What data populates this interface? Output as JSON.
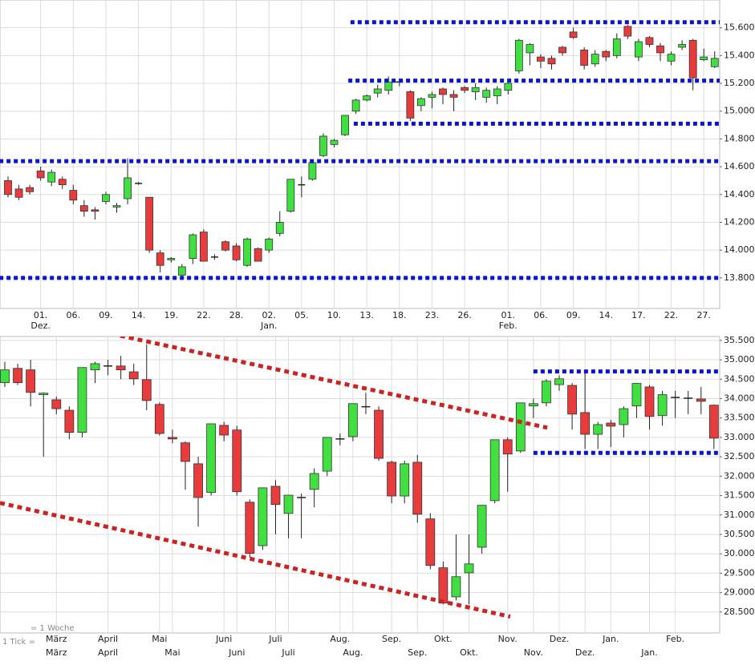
{
  "chart_data": [
    {
      "type": "candlestick",
      "ohlc": [
        [
          14.5,
          14.53,
          14.38,
          14.4
        ],
        [
          14.44,
          14.47,
          14.36,
          14.38
        ],
        [
          14.45,
          14.47,
          14.4,
          14.42
        ],
        [
          14.57,
          14.6,
          14.5,
          14.52
        ],
        [
          14.49,
          14.58,
          14.46,
          14.56
        ],
        [
          14.51,
          14.53,
          14.44,
          14.47
        ],
        [
          14.43,
          14.47,
          14.33,
          14.36
        ],
        [
          14.32,
          14.36,
          14.24,
          14.28
        ],
        [
          14.29,
          14.31,
          14.22,
          14.28
        ],
        [
          14.35,
          14.42,
          14.33,
          14.4
        ],
        [
          14.31,
          14.34,
          14.27,
          14.32
        ],
        [
          14.37,
          14.66,
          14.33,
          14.52
        ],
        [
          14.48,
          14.49,
          14.47,
          14.48
        ],
        [
          14.38,
          14.38,
          13.98,
          14.0
        ],
        [
          13.98,
          14.0,
          13.84,
          13.89
        ],
        [
          13.93,
          13.95,
          13.91,
          13.94
        ],
        [
          13.82,
          13.9,
          13.8,
          13.88
        ],
        [
          13.94,
          14.12,
          13.9,
          14.11
        ],
        [
          14.13,
          14.15,
          13.92,
          13.92
        ],
        [
          13.95,
          13.97,
          13.93,
          13.95
        ],
        [
          14.06,
          14.07,
          13.99,
          14.0
        ],
        [
          14.03,
          14.05,
          13.92,
          13.93
        ],
        [
          13.89,
          14.09,
          13.88,
          14.08
        ],
        [
          14.01,
          14.02,
          13.92,
          13.92
        ],
        [
          14.0,
          14.09,
          13.98,
          14.08
        ],
        [
          14.12,
          14.28,
          14.1,
          14.2
        ],
        [
          14.28,
          14.51,
          14.27,
          14.51
        ],
        [
          14.47,
          14.53,
          14.38,
          14.47
        ],
        [
          14.51,
          14.64,
          14.5,
          14.63
        ],
        [
          14.68,
          14.84,
          14.67,
          14.82
        ],
        [
          14.76,
          14.8,
          14.74,
          14.79
        ],
        [
          14.83,
          14.97,
          14.82,
          14.97
        ],
        [
          15.0,
          15.09,
          14.98,
          15.08
        ],
        [
          15.08,
          15.12,
          15.07,
          15.11
        ],
        [
          15.13,
          15.19,
          15.1,
          15.16
        ],
        [
          15.15,
          15.25,
          15.12,
          15.21
        ],
        [
          15.21,
          15.22,
          15.18,
          15.21
        ],
        [
          15.14,
          15.15,
          14.93,
          14.95
        ],
        [
          15.04,
          15.1,
          15.0,
          15.09
        ],
        [
          15.1,
          15.14,
          15.02,
          15.12
        ],
        [
          15.16,
          15.17,
          15.05,
          15.12
        ],
        [
          15.12,
          15.15,
          15.0,
          15.1
        ],
        [
          15.17,
          15.18,
          15.13,
          15.15
        ],
        [
          15.14,
          15.2,
          15.08,
          15.17
        ],
        [
          15.1,
          15.17,
          15.06,
          15.15
        ],
        [
          15.11,
          15.18,
          15.05,
          15.16
        ],
        [
          15.15,
          15.22,
          15.12,
          15.2
        ],
        [
          15.29,
          15.52,
          15.27,
          15.51
        ],
        [
          15.42,
          15.49,
          15.33,
          15.48
        ],
        [
          15.39,
          15.41,
          15.31,
          15.36
        ],
        [
          15.38,
          15.4,
          15.3,
          15.34
        ],
        [
          15.46,
          15.47,
          15.4,
          15.42
        ],
        [
          15.57,
          15.6,
          15.52,
          15.53
        ],
        [
          15.44,
          15.46,
          15.3,
          15.33
        ],
        [
          15.34,
          15.44,
          15.32,
          15.41
        ],
        [
          15.43,
          15.44,
          15.36,
          15.39
        ],
        [
          15.4,
          15.56,
          15.38,
          15.52
        ],
        [
          15.61,
          15.62,
          15.52,
          15.54
        ],
        [
          15.39,
          15.52,
          15.36,
          15.5
        ],
        [
          15.53,
          15.54,
          15.46,
          15.48
        ],
        [
          15.47,
          15.49,
          15.36,
          15.42
        ],
        [
          15.36,
          15.43,
          15.33,
          15.41
        ],
        [
          15.46,
          15.51,
          15.44,
          15.48
        ],
        [
          15.51,
          15.52,
          15.15,
          15.24
        ],
        [
          15.37,
          15.45,
          15.36,
          15.39
        ],
        [
          15.32,
          15.43,
          15.31,
          15.38
        ]
      ],
      "categories": [
        null,
        null,
        null,
        "01.",
        null,
        null,
        "06.",
        null,
        null,
        "09.",
        null,
        null,
        "14.",
        null,
        null,
        "19.",
        null,
        null,
        "22.",
        null,
        null,
        "28.",
        null,
        null,
        "02.",
        null,
        null,
        "05.",
        null,
        null,
        "10.",
        null,
        null,
        "13.",
        null,
        null,
        "18.",
        null,
        null,
        "23.",
        null,
        null,
        "26.",
        null,
        null,
        null,
        "01.",
        null,
        null,
        "06.",
        null,
        null,
        "09.",
        null,
        null,
        "14.",
        null,
        null,
        "17.",
        null,
        null,
        "22.",
        null,
        null,
        "27.",
        null
      ],
      "categories_sub": [
        null,
        null,
        null,
        "Dez.",
        null,
        null,
        null,
        null,
        null,
        null,
        null,
        null,
        null,
        null,
        null,
        null,
        null,
        null,
        null,
        null,
        null,
        null,
        null,
        null,
        "Jan.",
        null,
        null,
        null,
        null,
        null,
        null,
        null,
        null,
        null,
        null,
        null,
        null,
        null,
        null,
        null,
        null,
        null,
        null,
        null,
        null,
        null,
        "Feb.",
        null,
        null,
        null,
        null,
        null,
        null,
        null,
        null,
        null,
        null,
        null,
        null,
        null,
        null,
        null,
        null,
        null,
        null,
        null
      ],
      "ylim": [
        13.58,
        15.8
      ],
      "yticks": [
        {
          "value": 13.8,
          "label": "13.800"
        },
        {
          "value": 14.0,
          "label": "14.000"
        },
        {
          "value": 14.2,
          "label": "14.200"
        },
        {
          "value": 14.4,
          "label": "14.400"
        },
        {
          "value": 14.6,
          "label": "14.600"
        },
        {
          "value": 14.8,
          "label": "14.800"
        },
        {
          "value": 15.0,
          "label": "15.000"
        },
        {
          "value": 15.2,
          "label": "15.200"
        },
        {
          "value": 15.4,
          "label": "15.400"
        },
        {
          "value": 15.6,
          "label": "15.600"
        }
      ],
      "levels": [
        {
          "value": 15.64,
          "x": [
            31.5,
            65.5
          ],
          "color": "#0a14d2"
        },
        {
          "value": 15.22,
          "x": [
            31.3,
            65.5
          ],
          "color": "#0a14d2"
        },
        {
          "value": 14.91,
          "x": [
            31.8,
            65.5
          ],
          "color": "#0a14d2"
        },
        {
          "value": 14.64,
          "x": [
            -0.8,
            65.5
          ],
          "color": "#0a14d2"
        },
        {
          "value": 13.8,
          "x": [
            -0.8,
            65.5
          ],
          "color": "#0a14d2"
        }
      ],
      "up_color": "#3fe03f",
      "down_color": "#e83c3c",
      "grid": true
    },
    {
      "type": "candlestick",
      "ohlc": [
        [
          34.41,
          34.95,
          34.3,
          34.74
        ],
        [
          34.78,
          34.9,
          34.35,
          34.41
        ],
        [
          34.74,
          35.0,
          33.8,
          34.16
        ],
        [
          34.1,
          34.16,
          32.5,
          34.14
        ],
        [
          33.97,
          34.05,
          33.6,
          33.74
        ],
        [
          33.7,
          33.8,
          32.95,
          33.13
        ],
        [
          33.13,
          34.8,
          33.0,
          34.8
        ],
        [
          34.74,
          34.95,
          34.4,
          34.9
        ],
        [
          34.84,
          35.0,
          34.6,
          34.84
        ],
        [
          34.84,
          35.1,
          34.5,
          34.74
        ],
        [
          34.69,
          34.9,
          34.35,
          34.51
        ],
        [
          34.49,
          35.4,
          33.7,
          33.95
        ],
        [
          33.85,
          33.9,
          33.05,
          33.1
        ],
        [
          33.0,
          33.2,
          32.85,
          32.96
        ],
        [
          32.86,
          32.9,
          31.65,
          32.38
        ],
        [
          32.32,
          32.5,
          30.7,
          31.45
        ],
        [
          31.58,
          33.35,
          31.5,
          33.35
        ],
        [
          33.31,
          33.4,
          32.9,
          33.06
        ],
        [
          33.19,
          33.3,
          31.5,
          31.6
        ],
        [
          31.33,
          31.4,
          29.9,
          30.01
        ],
        [
          30.21,
          31.7,
          30.1,
          31.7
        ],
        [
          31.74,
          31.9,
          30.5,
          31.27
        ],
        [
          31.04,
          31.51,
          30.4,
          31.51
        ],
        [
          31.45,
          31.55,
          30.4,
          31.45
        ],
        [
          31.66,
          32.2,
          31.2,
          32.07
        ],
        [
          32.13,
          33.0,
          32.0,
          33.0
        ],
        [
          32.96,
          33.1,
          32.8,
          32.96
        ],
        [
          33.02,
          33.87,
          32.9,
          33.87
        ],
        [
          33.79,
          34.15,
          33.6,
          33.79
        ],
        [
          33.7,
          33.8,
          32.4,
          32.46
        ],
        [
          32.36,
          32.4,
          31.3,
          31.49
        ],
        [
          31.49,
          32.4,
          31.3,
          32.32
        ],
        [
          32.36,
          32.55,
          30.8,
          31.02
        ],
        [
          30.9,
          31.05,
          29.6,
          29.7
        ],
        [
          29.64,
          29.8,
          28.7,
          28.73
        ],
        [
          28.89,
          30.5,
          28.8,
          29.41
        ],
        [
          29.51,
          30.5,
          28.7,
          29.74
        ],
        [
          30.17,
          31.25,
          30.0,
          31.25
        ],
        [
          31.37,
          32.94,
          31.3,
          32.94
        ],
        [
          32.94,
          33.0,
          31.6,
          32.57
        ],
        [
          32.65,
          33.89,
          32.6,
          33.89
        ],
        [
          33.81,
          34.0,
          33.5,
          33.87
        ],
        [
          33.89,
          34.5,
          33.8,
          34.45
        ],
        [
          34.36,
          34.6,
          34.2,
          34.51
        ],
        [
          34.34,
          34.4,
          33.2,
          33.6
        ],
        [
          33.64,
          34.7,
          32.7,
          33.08
        ],
        [
          33.08,
          33.4,
          32.7,
          33.33
        ],
        [
          33.37,
          33.45,
          32.75,
          33.29
        ],
        [
          33.33,
          33.8,
          33.0,
          33.74
        ],
        [
          33.81,
          34.4,
          33.5,
          34.39
        ],
        [
          34.3,
          34.35,
          33.2,
          33.54
        ],
        [
          33.56,
          34.2,
          33.3,
          34.1
        ],
        [
          34.03,
          34.2,
          33.5,
          34.03
        ],
        [
          34.01,
          34.2,
          33.6,
          34.01
        ],
        [
          33.99,
          34.3,
          33.6,
          33.93
        ],
        [
          33.83,
          33.85,
          32.7,
          32.98
        ]
      ],
      "categories": [
        null,
        null,
        null,
        null,
        "März",
        null,
        null,
        null,
        "April",
        null,
        null,
        null,
        "Mai",
        null,
        null,
        null,
        null,
        "Juni",
        null,
        null,
        null,
        "Juli",
        null,
        null,
        null,
        null,
        "Aug.",
        null,
        null,
        null,
        "Sep.",
        null,
        null,
        null,
        "Okt.",
        null,
        null,
        null,
        null,
        "Nov.",
        null,
        null,
        null,
        "Dez.",
        null,
        null,
        null,
        "Jan.",
        null,
        null,
        null,
        null,
        "Feb.",
        null,
        null,
        null
      ],
      "categories_sub": [
        null,
        null,
        null,
        null,
        "März",
        null,
        null,
        null,
        "April",
        null,
        null,
        null,
        null,
        "Mai",
        null,
        null,
        null,
        null,
        "Juni",
        null,
        null,
        null,
        "Juli",
        null,
        null,
        null,
        null,
        "Aug.",
        null,
        null,
        null,
        null,
        "Sep.",
        null,
        null,
        null,
        "Okt.",
        null,
        null,
        null,
        null,
        "Nov.",
        null,
        null,
        null,
        "Dez.",
        null,
        null,
        null,
        null,
        "Jan.",
        null,
        null,
        null,
        null,
        null
      ],
      "ylim": [
        27.96,
        35.6
      ],
      "yticks": [
        {
          "value": 28.5,
          "label": "28.500"
        },
        {
          "value": 29.0,
          "label": "29.000"
        },
        {
          "value": 29.5,
          "label": "29.500"
        },
        {
          "value": 30.0,
          "label": "30.000"
        },
        {
          "value": 30.5,
          "label": "30.500"
        },
        {
          "value": 31.0,
          "label": "31.000"
        },
        {
          "value": 31.5,
          "label": "31.500"
        },
        {
          "value": 32.0,
          "label": "32.000"
        },
        {
          "value": 32.5,
          "label": "32.500"
        },
        {
          "value": 33.0,
          "label": "33.000"
        },
        {
          "value": 33.5,
          "label": "33.500"
        },
        {
          "value": 34.0,
          "label": "34.000"
        },
        {
          "value": 34.5,
          "label": "34.500"
        },
        {
          "value": 35.0,
          "label": "35.000"
        },
        {
          "value": 35.5,
          "label": "35.500"
        }
      ],
      "levels": [
        {
          "value": 34.7,
          "x": [
            41,
            55.4
          ],
          "color": "#0a14d2"
        },
        {
          "value": 32.6,
          "x": [
            41,
            55.4
          ],
          "color": "#0a14d2"
        }
      ],
      "trendlines": [
        {
          "points": [
            [
              8.96,
              35.62
            ],
            [
              42.07,
              33.25
            ]
          ],
          "color": "#cc2222"
        },
        {
          "points": [
            [
              -0.37,
              31.31
            ],
            [
              39.2,
              28.38
            ]
          ],
          "color": "#cc2222"
        }
      ],
      "notes": [
        "= 1 Woche",
        "1 Tick ="
      ],
      "up_color": "#3fe03f",
      "down_color": "#e83c3c",
      "grid": true
    }
  ]
}
